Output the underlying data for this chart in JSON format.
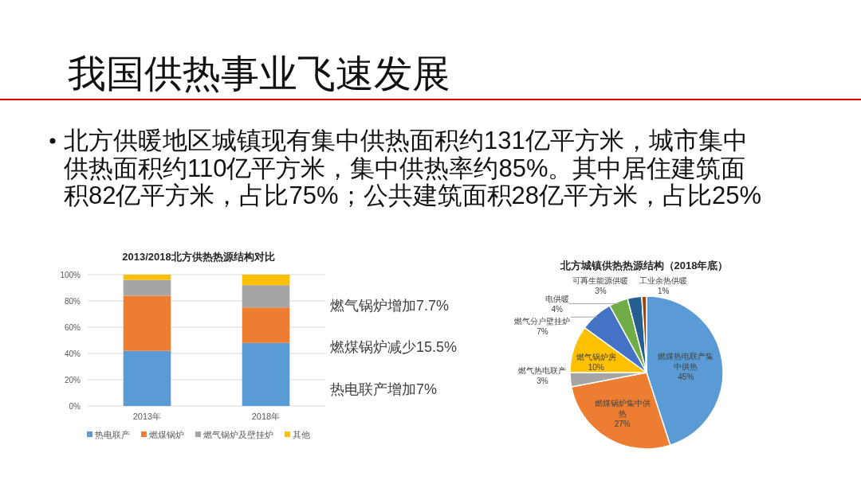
{
  "chart_data": [
    {
      "type": "other",
      "title": "我国供热事业飞速发展",
      "annotations": [
        "北方供暖地区城镇现有集中供热面积约131亿平方米，城市集中供热面积约110亿平方米，集中供热率约85%。其中居住建筑面积82亿平方米，占比75%；公共建筑面积28亿平方米，占比25%"
      ]
    },
    {
      "type": "bar",
      "title": "2013/2018北方供热热源结构对比",
      "categories": [
        "2013年",
        "2018年"
      ],
      "stacked": true,
      "series": [
        {
          "name": "热电联产",
          "color": "#5b9bd5",
          "values": [
            42,
            48
          ]
        },
        {
          "name": "燃煤锅炉",
          "color": "#ed7d31",
          "values": [
            42,
            27
          ]
        },
        {
          "name": "燃气锅炉及壁挂炉",
          "color": "#a5a5a5",
          "values": [
            12,
            17
          ]
        },
        {
          "name": "其他",
          "color": "#ffc000",
          "values": [
            4,
            8
          ]
        }
      ],
      "ylim": [
        0,
        100
      ],
      "yticks": [
        {
          "value": 0,
          "label": "0%"
        },
        {
          "value": 20,
          "label": "20%"
        },
        {
          "value": 40,
          "label": "40%"
        },
        {
          "value": 60,
          "label": "60%"
        },
        {
          "value": 80,
          "label": "80%"
        },
        {
          "value": 100,
          "label": "100%"
        }
      ],
      "grid": "y",
      "legend": "bottom",
      "annotations": [
        "燃气锅炉增加7.7%",
        "燃煤锅炉减少15.5%",
        "热电联产增加7%"
      ]
    },
    {
      "type": "pie",
      "title": "北方城镇供热热源结构（2018年底）",
      "categories": [
        "燃煤热电联产集中供热",
        "燃煤锅炉集中供热",
        "燃气热电联产",
        "燃气锅炉房",
        "燃气分户壁挂炉",
        "电供暖",
        "可再生能源供暖",
        "工业余热供暖"
      ],
      "values": [
        45,
        27,
        3,
        10,
        7,
        4,
        3,
        1
      ],
      "colors": [
        "#5b9bd5",
        "#ed7d31",
        "#a5a5a5",
        "#ffc000",
        "#4472c4",
        "#70ad47",
        "#255e91",
        "#9e480e"
      ],
      "value_labels": [
        "45%",
        "27%",
        "3%",
        "10%",
        "7%",
        "4%",
        "3%",
        "1%"
      ]
    }
  ]
}
